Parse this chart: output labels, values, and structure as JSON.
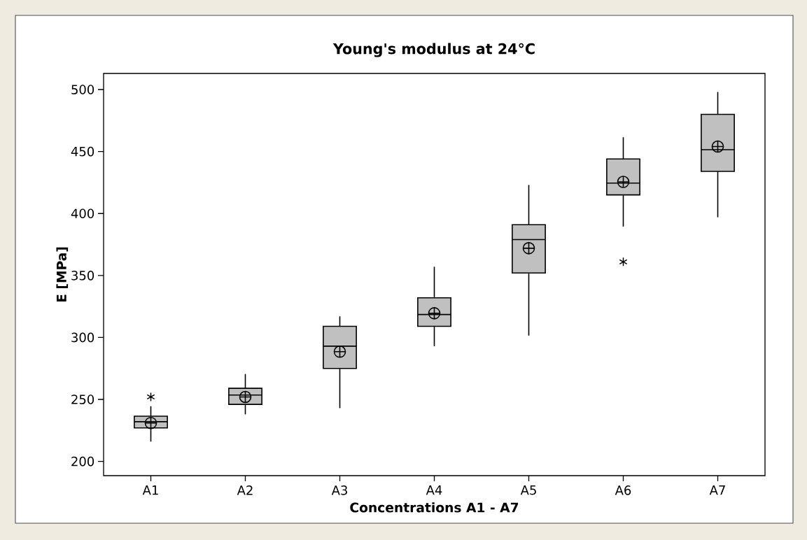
{
  "chart_data": {
    "type": "box",
    "title": "Young's modulus at 24°C",
    "xlabel": "Concentrations A1 - A7",
    "ylabel": "E [MPa]",
    "categories": [
      "A1",
      "A2",
      "A3",
      "A4",
      "A5",
      "A6",
      "A7"
    ],
    "color": "#c0c0c0",
    "boxes": [
      {
        "low": 216,
        "q1": 227,
        "median": 232,
        "q3": 236.5,
        "high": 244.5,
        "mean": 231,
        "outliers": [
          252
        ]
      },
      {
        "low": 238,
        "q1": 246,
        "median": 253.5,
        "q3": 259,
        "high": 270.5,
        "mean": 252
      },
      {
        "low": 243,
        "q1": 275,
        "median": 293,
        "q3": 309,
        "high": 317,
        "mean": 288.5
      },
      {
        "low": 293,
        "q1": 309,
        "median": 318.5,
        "q3": 332,
        "high": 357,
        "mean": 319.5
      },
      {
        "low": 301.5,
        "q1": 352,
        "median": 379,
        "q3": 391,
        "high": 423,
        "mean": 372
      },
      {
        "low": 389.5,
        "q1": 415,
        "median": 424.5,
        "q3": 444,
        "high": 461.5,
        "mean": 425.5,
        "outliers": [
          361
        ]
      },
      {
        "low": 397,
        "q1": 434,
        "median": 451.5,
        "q3": 480,
        "high": 498,
        "mean": 454
      }
    ],
    "ylim": [
      188.5,
      513
    ],
    "yticks": [
      200,
      250,
      300,
      350,
      400,
      450,
      500
    ]
  }
}
